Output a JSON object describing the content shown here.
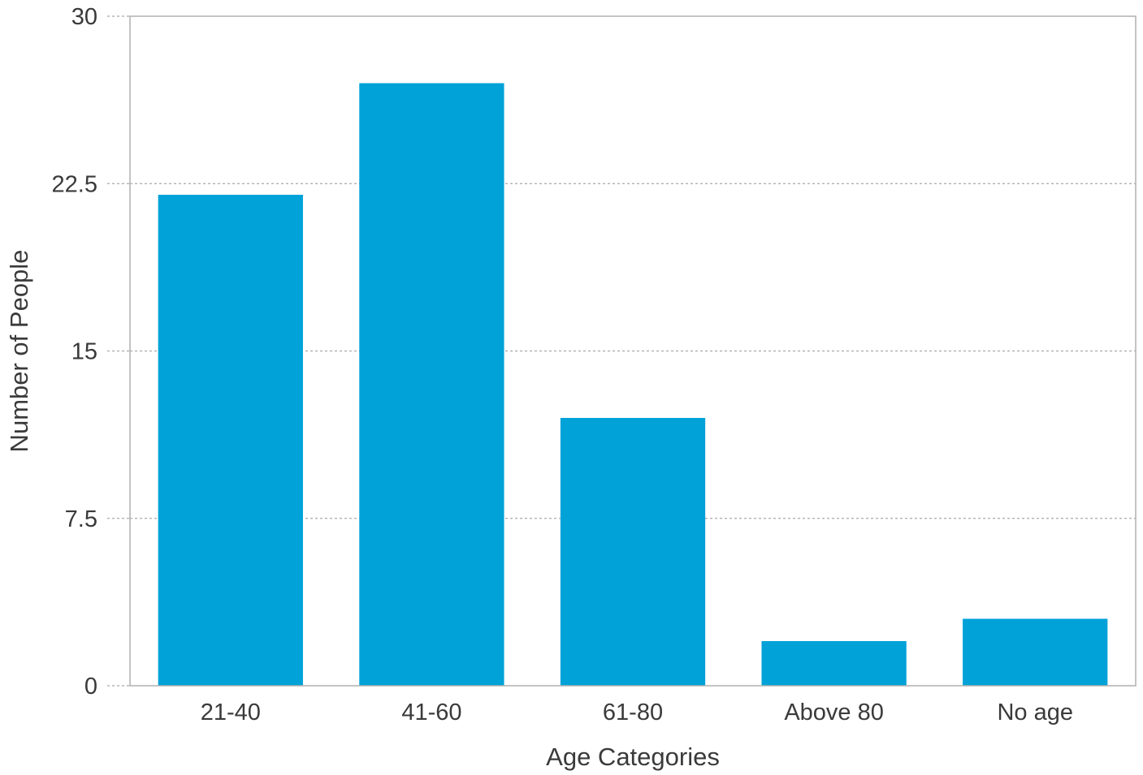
{
  "chart_data": {
    "type": "bar",
    "title": "",
    "xlabel": "Age Categories",
    "ylabel": "Number of People",
    "categories": [
      "21-40",
      "41-60",
      "61-80",
      "Above 80",
      "No age"
    ],
    "values": [
      22,
      27,
      12,
      2,
      3
    ],
    "ylim": [
      0,
      30
    ],
    "yticks": [
      0,
      7.5,
      15,
      22.5,
      30
    ],
    "ytick_labels": [
      "0",
      "7.5",
      "15",
      "22.5",
      "30"
    ],
    "grid": "horizontal dotted",
    "legend": "none",
    "colors": {
      "bar": "#00a2d8",
      "grid": "#a8a8a8",
      "frame": "#b0b0b0",
      "text": "#3a3a3a"
    }
  }
}
